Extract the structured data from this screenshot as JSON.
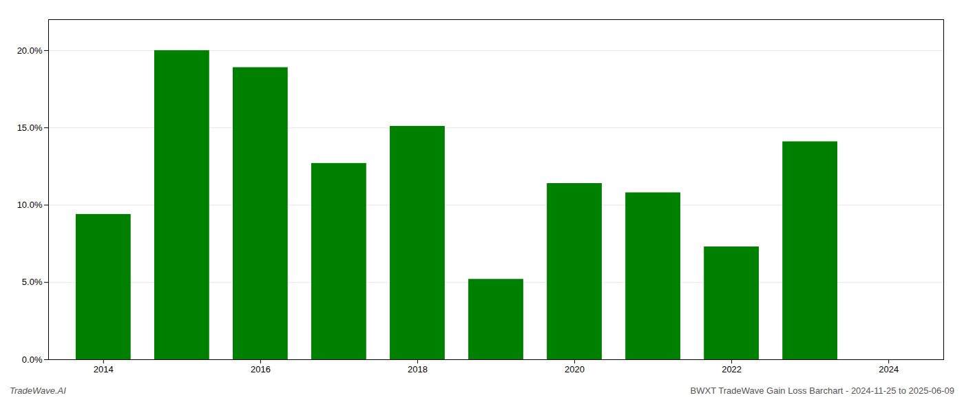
{
  "chart_data": {
    "type": "bar",
    "x": [
      2014,
      2015,
      2016,
      2017,
      2018,
      2019,
      2020,
      2021,
      2022,
      2023
    ],
    "values": [
      0.094,
      0.2,
      0.189,
      0.127,
      0.151,
      0.052,
      0.114,
      0.108,
      0.073,
      0.141
    ],
    "color": "#008000",
    "xlim": [
      2013.3,
      2024.7
    ],
    "xticks": [
      2014,
      2016,
      2018,
      2020,
      2022,
      2024
    ],
    "ylim": [
      0,
      0.22
    ],
    "yticks": [
      {
        "value": 0.0,
        "label": "0.0%"
      },
      {
        "value": 0.05,
        "label": "5.0%"
      },
      {
        "value": 0.1,
        "label": "10.0%"
      },
      {
        "value": 0.15,
        "label": "15.0%"
      },
      {
        "value": 0.2,
        "label": "20.0%"
      }
    ],
    "grid": true,
    "annotations": [
      "TradeWave.AI",
      "BWXT TradeWave Gain Loss Barchart - 2024-11-25 to 2025-06-09"
    ]
  }
}
